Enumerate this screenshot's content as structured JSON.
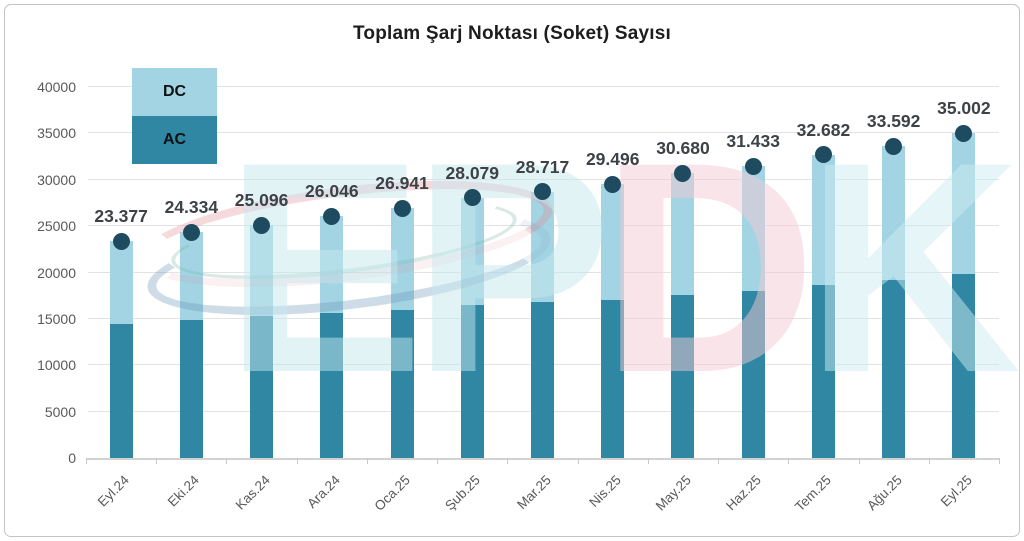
{
  "window": {
    "title": "Toplam Şarj Noktası (Soket) Sayısı"
  },
  "chart_data": {
    "type": "bar",
    "stacked": true,
    "title": "Toplam Şarj Noktası (Soket) Sayısı",
    "categories": [
      "Eyl.24",
      "Eki.24",
      "Kas.24",
      "Ara.24",
      "Oca.25",
      "Şub.25",
      "Mar.25",
      "Nis.25",
      "May.25",
      "Haz.25",
      "Tem.25",
      "Ağu.25",
      "Eyl.25"
    ],
    "series": [
      {
        "name": "AC",
        "color": "#2f87a3",
        "values": [
          14400,
          14900,
          15300,
          15600,
          16000,
          16450,
          16800,
          17050,
          17600,
          18000,
          18700,
          19200,
          19800
        ]
      },
      {
        "name": "DC",
        "color": "#a3d4e3",
        "values": [
          8977,
          9434,
          9796,
          10446,
          10941,
          11629,
          11917,
          12446,
          13080,
          13433,
          13982,
          14392,
          15202
        ]
      }
    ],
    "totals": [
      23377,
      24334,
      25096,
      26046,
      26941,
      28079,
      28717,
      29496,
      30680,
      31433,
      32682,
      33592,
      35002
    ],
    "total_labels": [
      "23.377",
      "24.334",
      "25.096",
      "26.046",
      "26.941",
      "28.079",
      "28.717",
      "29.496",
      "30.680",
      "31.433",
      "32.682",
      "33.592",
      "35.002"
    ],
    "y_ticks": [
      0,
      5000,
      10000,
      15000,
      20000,
      25000,
      30000,
      35000,
      40000
    ],
    "y_max": 40000,
    "grid": true,
    "legend": {
      "position": "top-left",
      "items": [
        {
          "label": "DC",
          "color": "#a3d4e3"
        },
        {
          "label": "AC",
          "color": "#2f87a3"
        }
      ]
    },
    "marker_color": "#1e4b5f",
    "label_color": "#3d4247",
    "axis_label_color": "#595959"
  },
  "watermark": {
    "text": "EPDK",
    "letters": [
      {
        "char": "E",
        "color": "rgba(197,231,237,0.50)"
      },
      {
        "char": "P",
        "color": "rgba(197,231,237,0.50)"
      },
      {
        "char": "D",
        "color": "rgba(244,202,211,0.50)"
      },
      {
        "char": "K",
        "color": "rgba(205,236,242,0.50)"
      }
    ]
  }
}
